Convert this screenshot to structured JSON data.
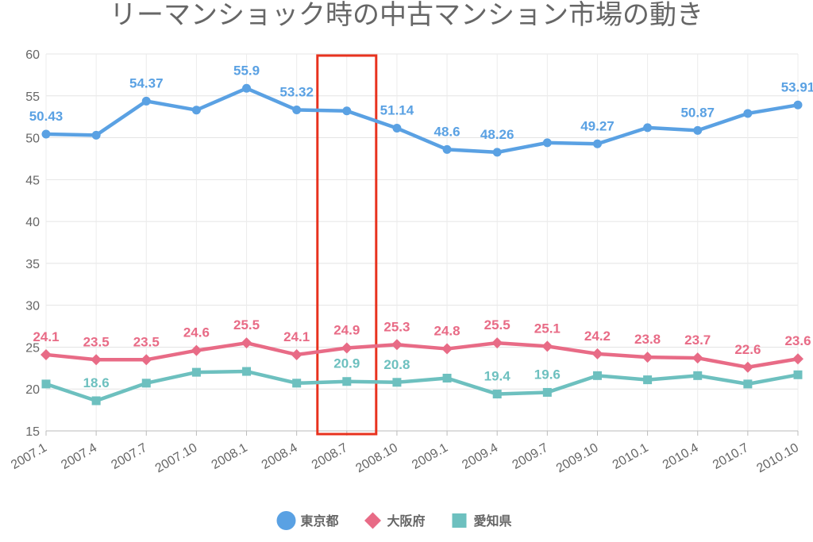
{
  "chart_data": {
    "type": "line",
    "title": "リーマンショック時の中古マンション市場の動き",
    "xlabel": "",
    "ylabel": "",
    "ylim": [
      15,
      60
    ],
    "yticks": [
      15,
      20,
      25,
      30,
      35,
      40,
      45,
      50,
      55,
      60
    ],
    "categories": [
      "2007.1",
      "2007.4",
      "2007.7",
      "2007.10",
      "2008.1",
      "2008.4",
      "2008.7",
      "2008.10",
      "2009.1",
      "2009.4",
      "2009.7",
      "2009.10",
      "2010.1",
      "2010.4",
      "2010.7",
      "2010.10"
    ],
    "grid": true,
    "legend_position": "bottom",
    "highlight": {
      "category": "2008.7",
      "color": "#e8321e"
    },
    "series": [
      {
        "name": "東京都",
        "color": "#5aa1e3",
        "marker": "circle",
        "values": [
          50.43,
          50.3,
          54.37,
          53.3,
          55.9,
          53.32,
          53.2,
          51.14,
          48.6,
          48.26,
          49.4,
          49.27,
          51.2,
          50.87,
          52.9,
          53.91
        ],
        "labels": [
          "50.43",
          "",
          "54.37",
          "",
          "55.9",
          "53.32",
          "",
          "51.14",
          "48.6",
          "48.26",
          "",
          "49.27",
          "",
          "50.87",
          "",
          "53.91"
        ]
      },
      {
        "name": "大阪府",
        "color": "#e86b86",
        "marker": "diamond",
        "values": [
          24.1,
          23.5,
          23.5,
          24.6,
          25.5,
          24.1,
          24.9,
          25.3,
          24.8,
          25.5,
          25.1,
          24.2,
          23.8,
          23.7,
          22.6,
          23.6
        ],
        "labels": [
          "24.1",
          "23.5",
          "23.5",
          "24.6",
          "25.5",
          "24.1",
          "24.9",
          "25.3",
          "24.8",
          "25.5",
          "25.1",
          "24.2",
          "23.8",
          "23.7",
          "22.6",
          "23.6"
        ]
      },
      {
        "name": "愛知県",
        "color": "#6dc0bf",
        "marker": "square",
        "values": [
          20.6,
          18.6,
          20.7,
          22.0,
          22.1,
          20.7,
          20.9,
          20.8,
          21.3,
          19.4,
          19.6,
          21.6,
          21.1,
          21.6,
          20.6,
          21.7
        ],
        "labels": [
          "",
          "18.6",
          "",
          "",
          "",
          "",
          "20.9",
          "20.8",
          "",
          "19.4",
          "19.6",
          "",
          "",
          "",
          "",
          ""
        ]
      }
    ]
  }
}
